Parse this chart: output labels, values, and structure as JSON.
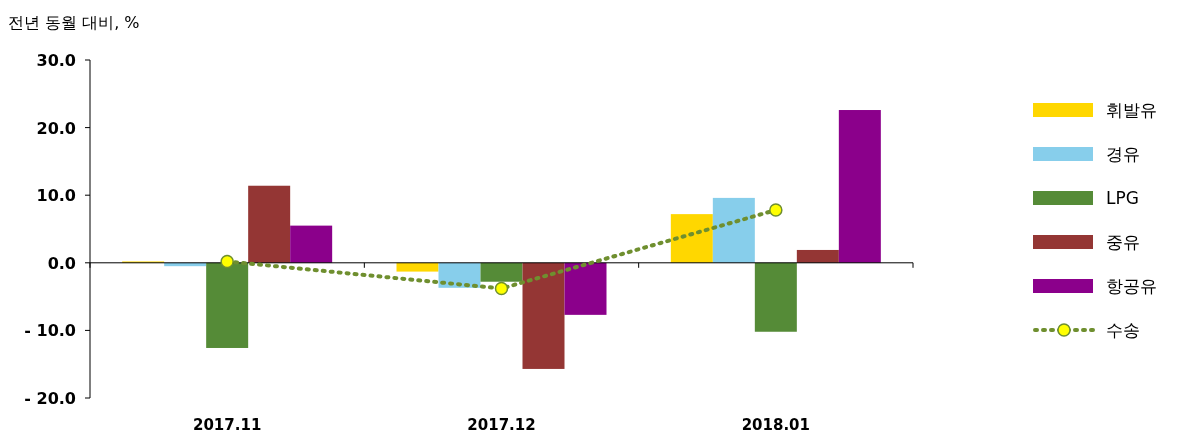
{
  "chart_data": {
    "type": "bar",
    "ylabel": "전년 동월 대비, %",
    "categories": [
      "2017.11",
      "2017.12",
      "2018.01"
    ],
    "ylim": [
      -20,
      30
    ],
    "yticks": [
      {
        "value": -20,
        "label": "- 20.0"
      },
      {
        "value": -10,
        "label": "- 10.0"
      },
      {
        "value": 0,
        "label": "0.0"
      },
      {
        "value": 10,
        "label": "10.0"
      },
      {
        "value": 20,
        "label": "20.0"
      },
      {
        "value": 30,
        "label": "30.0"
      }
    ],
    "legend": "right",
    "series": [
      {
        "name": "휘발유",
        "color": "#ffd700",
        "values": [
          0.2,
          -1.3,
          7.2
        ]
      },
      {
        "name": "경유",
        "color": "#87ceeb",
        "values": [
          -0.5,
          -3.7,
          9.6
        ]
      },
      {
        "name": "LPG",
        "color": "#558b37",
        "values": [
          -12.6,
          -2.8,
          -10.2
        ]
      },
      {
        "name": "중유",
        "color": "#943634",
        "values": [
          11.4,
          -15.7,
          1.9
        ]
      },
      {
        "name": "항공유",
        "color": "#8b008b",
        "values": [
          5.5,
          -7.7,
          22.6
        ]
      },
      {
        "name": "수송",
        "type": "line",
        "color": "#6f8f2f",
        "marker": "circle",
        "line_style": "dotted",
        "values": [
          0.2,
          -3.8,
          7.8
        ]
      }
    ]
  }
}
